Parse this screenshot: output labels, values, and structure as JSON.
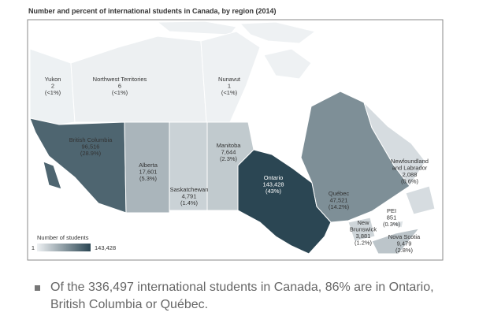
{
  "title": "Number and percent of international students in Canada, by region (2014)",
  "regions": [
    {
      "name": [
        "Yukon"
      ],
      "students": 2,
      "share": "(<1%)"
    },
    {
      "name": [
        "Northwest Territories"
      ],
      "students": 6,
      "share": "(<1%)"
    },
    {
      "name": [
        "Nunavut"
      ],
      "students": 1,
      "share": "(<1%)"
    },
    {
      "name": [
        "British Columbia"
      ],
      "students": {
        "value": 96516,
        "label": "96,516"
      },
      "share": "(28.9%)"
    },
    {
      "name": [
        "Alberta"
      ],
      "students": {
        "value": 17601,
        "label": "17,601"
      },
      "share": "(5.3%)"
    },
    {
      "name": [
        "Saskatchewan"
      ],
      "students": {
        "value": 4791,
        "label": "4,791"
      },
      "share": "(1.4%)"
    },
    {
      "name": [
        "Manitoba"
      ],
      "students": {
        "value": 7644,
        "label": "7,644"
      },
      "share": "(2.3%)"
    },
    {
      "name": [
        "Ontario"
      ],
      "students": {
        "value": 143428,
        "label": "143,428"
      },
      "share": "(43%)"
    },
    {
      "name": [
        "Québec"
      ],
      "students": {
        "value": 47521,
        "label": "47,521"
      },
      "share": "(14.2%)"
    },
    {
      "name": [
        "Newfoundland",
        "and Labrador"
      ],
      "students": {
        "value": 2088,
        "label": "2,088"
      },
      "share": "(0.6%)"
    },
    {
      "name": [
        "New",
        "Brunswick"
      ],
      "students": {
        "value": 3881,
        "label": "3,881"
      },
      "share": "(1.2%)"
    },
    {
      "name": [
        "PEI"
      ],
      "students": 851,
      "share": "(0.3%)"
    },
    {
      "name": [
        "Nova Scotia"
      ],
      "students": {
        "value": 9479,
        "label": "9,479"
      },
      "share": "(2.8%)"
    }
  ],
  "legend": {
    "title": "Number of students",
    "min": 1,
    "max": {
      "value": 143428,
      "label": "143,428"
    },
    "colors": [
      "#eef1f3",
      "#2b4653"
    ]
  },
  "note": "Of the 336,497 international students in Canada, 86% are in Ontario, British Columbia or Québec."
}
